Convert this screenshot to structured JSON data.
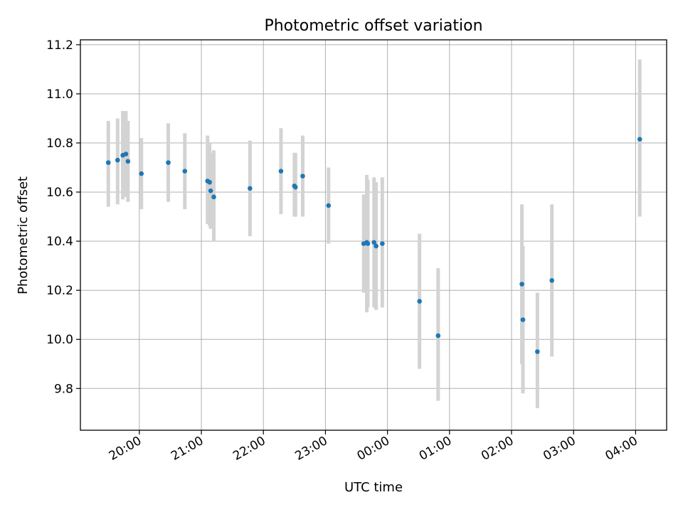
{
  "chart_data": {
    "type": "scatter",
    "title": "Photometric offset variation",
    "xlabel": "UTC time",
    "ylabel": "Photometric offset",
    "x_axis": {
      "type": "time",
      "range": [
        "19:03",
        "04:30"
      ],
      "ticks": [
        "20:00",
        "21:00",
        "22:00",
        "23:00",
        "00:00",
        "01:00",
        "02:00",
        "03:00",
        "04:00"
      ]
    },
    "ylim": [
      9.63,
      11.22
    ],
    "yticks": [
      "9.8",
      "10.0",
      "10.2",
      "10.4",
      "10.6",
      "10.8",
      "11.0",
      "11.2"
    ],
    "grid": true,
    "marker_color": "#1f77b4",
    "errorbar_color": "#d3d3d3",
    "points": [
      {
        "t": "19:30",
        "y": 10.72,
        "lo": 10.54,
        "hi": 10.89
      },
      {
        "t": "19:39",
        "y": 10.73,
        "lo": 10.55,
        "hi": 10.9
      },
      {
        "t": "19:44",
        "y": 10.75,
        "lo": 10.57,
        "hi": 10.93
      },
      {
        "t": "19:47",
        "y": 10.755,
        "lo": 10.58,
        "hi": 10.93
      },
      {
        "t": "19:49",
        "y": 10.725,
        "lo": 10.56,
        "hi": 10.89
      },
      {
        "t": "20:02",
        "y": 10.675,
        "lo": 10.53,
        "hi": 10.82
      },
      {
        "t": "20:28",
        "y": 10.72,
        "lo": 10.56,
        "hi": 10.88
      },
      {
        "t": "20:44",
        "y": 10.685,
        "lo": 10.53,
        "hi": 10.84
      },
      {
        "t": "21:06",
        "y": 10.645,
        "lo": 10.47,
        "hi": 10.83
      },
      {
        "t": "21:08",
        "y": 10.64,
        "lo": 10.46,
        "hi": 10.8
      },
      {
        "t": "21:09",
        "y": 10.605,
        "lo": 10.45,
        "hi": 10.76
      },
      {
        "t": "21:12",
        "y": 10.58,
        "lo": 10.4,
        "hi": 10.77
      },
      {
        "t": "21:47",
        "y": 10.615,
        "lo": 10.42,
        "hi": 10.81
      },
      {
        "t": "22:17",
        "y": 10.685,
        "lo": 10.51,
        "hi": 10.86
      },
      {
        "t": "22:30",
        "y": 10.625,
        "lo": 10.5,
        "hi": 10.76
      },
      {
        "t": "22:31",
        "y": 10.62,
        "lo": 10.5,
        "hi": 10.76
      },
      {
        "t": "22:38",
        "y": 10.665,
        "lo": 10.5,
        "hi": 10.83
      },
      {
        "t": "23:03",
        "y": 10.545,
        "lo": 10.39,
        "hi": 10.7
      },
      {
        "t": "23:37",
        "y": 10.39,
        "lo": 10.19,
        "hi": 10.59
      },
      {
        "t": "23:40",
        "y": 10.395,
        "lo": 10.11,
        "hi": 10.67
      },
      {
        "t": "23:41",
        "y": 10.39,
        "lo": 10.13,
        "hi": 10.65
      },
      {
        "t": "23:47",
        "y": 10.395,
        "lo": 10.13,
        "hi": 10.66
      },
      {
        "t": "23:49",
        "y": 10.38,
        "lo": 10.12,
        "hi": 10.64
      },
      {
        "t": "23:55",
        "y": 10.39,
        "lo": 10.13,
        "hi": 10.66
      },
      {
        "t": "00:31",
        "y": 10.155,
        "lo": 9.88,
        "hi": 10.43
      },
      {
        "t": "00:49",
        "y": 10.015,
        "lo": 9.75,
        "hi": 10.29
      },
      {
        "t": "02:10",
        "y": 10.225,
        "lo": 9.9,
        "hi": 10.55
      },
      {
        "t": "02:11",
        "y": 10.08,
        "lo": 9.78,
        "hi": 10.38
      },
      {
        "t": "02:25",
        "y": 9.95,
        "lo": 9.72,
        "hi": 10.19
      },
      {
        "t": "02:39",
        "y": 10.24,
        "lo": 9.93,
        "hi": 10.55
      },
      {
        "t": "04:04",
        "y": 10.815,
        "lo": 10.5,
        "hi": 11.14
      }
    ]
  }
}
